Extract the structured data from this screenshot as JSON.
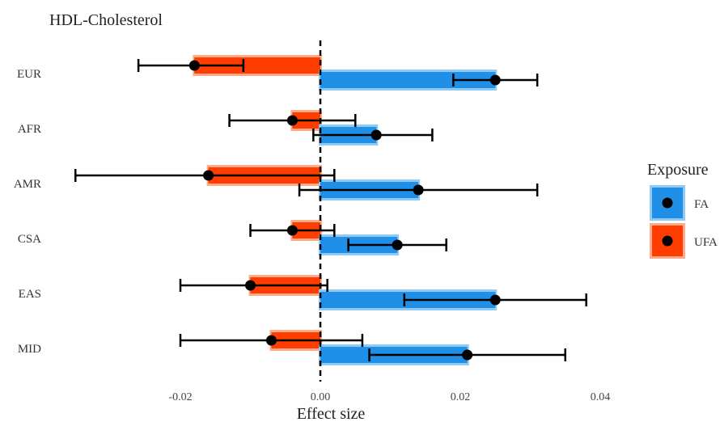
{
  "chart_data": {
    "type": "bar",
    "title": "HDL-Cholesterol",
    "xlabel": "Effect size",
    "ylabel": "",
    "categories": [
      "EUR",
      "AFR",
      "AMR",
      "CSA",
      "EAS",
      "MID"
    ],
    "xlim": [
      -0.0355,
      0.046
    ],
    "xticks": [
      -0.02,
      0.0,
      0.02,
      0.04
    ],
    "xtick_labels": [
      "-0.02",
      "0.00",
      "0.02",
      "0.04"
    ],
    "reference_line": {
      "x": 0.0,
      "style": "dashed"
    },
    "grid": false,
    "legend": {
      "title": "Exposure",
      "position": "right",
      "entries": [
        {
          "label": "FA",
          "color": "#1f8fe8"
        },
        {
          "label": "UFA",
          "color": "#ff3d00"
        }
      ]
    },
    "series": [
      {
        "name": "FA",
        "color": "#1f8fe8",
        "halo": "#8fcaf5",
        "estimates": [
          0.025,
          0.008,
          0.014,
          0.011,
          0.025,
          0.021
        ],
        "ci_low": [
          0.019,
          -0.001,
          -0.003,
          0.004,
          0.012,
          0.007
        ],
        "ci_high": [
          0.031,
          0.016,
          0.031,
          0.018,
          0.038,
          0.035
        ]
      },
      {
        "name": "UFA",
        "color": "#ff3d00",
        "halo": "#ffab8a",
        "estimates": [
          -0.018,
          -0.004,
          -0.016,
          -0.004,
          -0.01,
          -0.007
        ],
        "ci_low": [
          -0.026,
          -0.013,
          -0.035,
          -0.01,
          -0.02,
          -0.02
        ],
        "ci_high": [
          -0.011,
          0.005,
          0.002,
          0.002,
          0.001,
          0.006
        ]
      }
    ]
  }
}
